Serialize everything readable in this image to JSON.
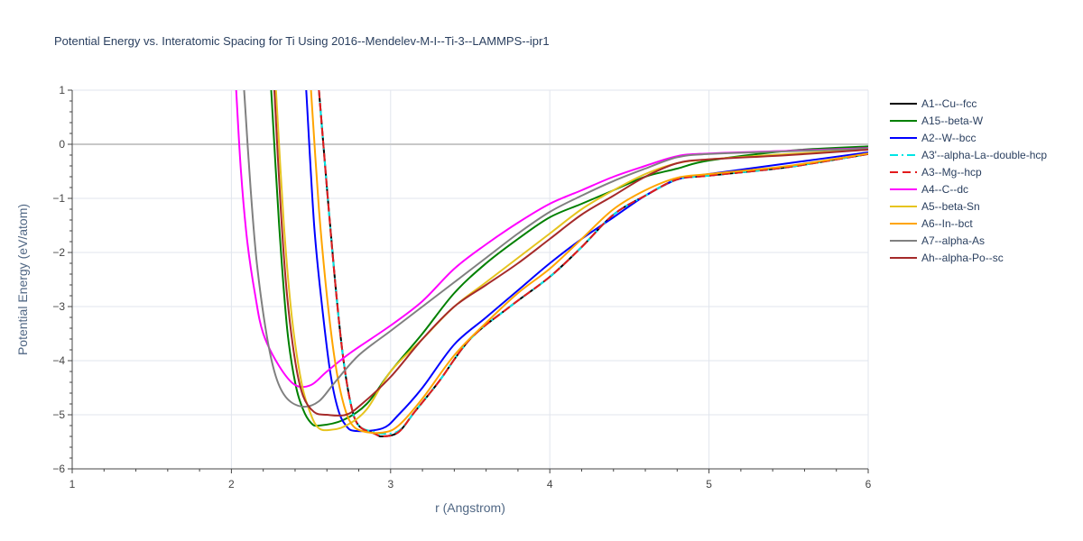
{
  "chart_data": {
    "type": "line",
    "title": "Potential Energy vs. Interatomic Spacing for Ti Using 2016--Mendelev-M-I--Ti-3--LAMMPS--ipr1",
    "xlabel": "r (Angstrom)",
    "ylabel": "Potential Energy (eV/atom)",
    "xlim": [
      1,
      6
    ],
    "ylim": [
      -6,
      1
    ],
    "x_ticks": [
      1,
      2,
      3,
      4,
      5,
      6
    ],
    "y_ticks": [
      -6,
      -5,
      -4,
      -3,
      -2,
      -1,
      0,
      1
    ],
    "x_tick_labels": [
      "1",
      "2",
      "3",
      "4",
      "5",
      "6"
    ],
    "y_tick_labels": [
      "−6",
      "−5",
      "−4",
      "−3",
      "−2",
      "−1",
      "0",
      "1"
    ],
    "grid": true,
    "legend_position": "right",
    "series": [
      {
        "name": "A1--Cu--fcc",
        "color": "#000000",
        "dash": "solid",
        "points": [
          [
            2.55,
            1
          ],
          [
            2.6,
            -0.8
          ],
          [
            2.65,
            -2.5
          ],
          [
            2.7,
            -3.9
          ],
          [
            2.75,
            -4.8
          ],
          [
            2.8,
            -5.2
          ],
          [
            2.9,
            -5.35
          ],
          [
            2.95,
            -5.4
          ],
          [
            3.05,
            -5.32
          ],
          [
            3.15,
            -4.95
          ],
          [
            3.3,
            -4.4
          ],
          [
            3.5,
            -3.6
          ],
          [
            3.75,
            -3.0
          ],
          [
            4.0,
            -2.45
          ],
          [
            4.2,
            -1.9
          ],
          [
            4.4,
            -1.3
          ],
          [
            4.6,
            -0.95
          ],
          [
            4.8,
            -0.65
          ],
          [
            5.0,
            -0.58
          ],
          [
            5.5,
            -0.42
          ],
          [
            6.0,
            -0.18
          ]
        ]
      },
      {
        "name": "A15--beta-W",
        "color": "#008000",
        "dash": "solid",
        "points": [
          [
            2.25,
            1
          ],
          [
            2.3,
            -1.5
          ],
          [
            2.35,
            -3.4
          ],
          [
            2.4,
            -4.4
          ],
          [
            2.45,
            -4.9
          ],
          [
            2.5,
            -5.15
          ],
          [
            2.55,
            -5.2
          ],
          [
            2.7,
            -5.1
          ],
          [
            2.85,
            -4.8
          ],
          [
            3.0,
            -4.2
          ],
          [
            3.2,
            -3.5
          ],
          [
            3.4,
            -2.75
          ],
          [
            3.6,
            -2.2
          ],
          [
            3.8,
            -1.75
          ],
          [
            4.0,
            -1.35
          ],
          [
            4.2,
            -1.1
          ],
          [
            4.4,
            -0.85
          ],
          [
            4.6,
            -0.6
          ],
          [
            4.8,
            -0.45
          ],
          [
            5.0,
            -0.3
          ],
          [
            5.5,
            -0.12
          ],
          [
            6.0,
            -0.04
          ]
        ]
      },
      {
        "name": "A2--W--bcc",
        "color": "#0000ff",
        "dash": "solid",
        "points": [
          [
            2.47,
            1
          ],
          [
            2.52,
            -1.5
          ],
          [
            2.57,
            -3.0
          ],
          [
            2.62,
            -4.2
          ],
          [
            2.67,
            -4.9
          ],
          [
            2.72,
            -5.2
          ],
          [
            2.78,
            -5.3
          ],
          [
            2.95,
            -5.25
          ],
          [
            3.05,
            -5.0
          ],
          [
            3.2,
            -4.5
          ],
          [
            3.4,
            -3.7
          ],
          [
            3.6,
            -3.2
          ],
          [
            3.8,
            -2.7
          ],
          [
            4.0,
            -2.2
          ],
          [
            4.2,
            -1.75
          ],
          [
            4.4,
            -1.35
          ],
          [
            4.6,
            -0.95
          ],
          [
            4.8,
            -0.65
          ],
          [
            5.0,
            -0.55
          ],
          [
            5.5,
            -0.35
          ],
          [
            6.0,
            -0.15
          ]
        ]
      },
      {
        "name": "A3'--alpha-La--double-hcp",
        "color": "#00e5e5",
        "dash": "dashdot",
        "points": [
          [
            2.55,
            1
          ],
          [
            2.6,
            -0.8
          ],
          [
            2.65,
            -2.5
          ],
          [
            2.7,
            -3.9
          ],
          [
            2.75,
            -4.8
          ],
          [
            2.8,
            -5.2
          ],
          [
            2.9,
            -5.32
          ],
          [
            2.95,
            -5.35
          ],
          [
            3.05,
            -5.3
          ],
          [
            3.15,
            -4.95
          ],
          [
            3.3,
            -4.4
          ],
          [
            3.5,
            -3.6
          ],
          [
            3.75,
            -3.0
          ],
          [
            4.0,
            -2.45
          ],
          [
            4.2,
            -1.9
          ],
          [
            4.4,
            -1.3
          ],
          [
            4.6,
            -0.95
          ],
          [
            4.8,
            -0.65
          ],
          [
            5.0,
            -0.58
          ],
          [
            5.5,
            -0.42
          ],
          [
            6.0,
            -0.18
          ]
        ]
      },
      {
        "name": "A3--Mg--hcp",
        "color": "#e31a1c",
        "dash": "dash",
        "points": [
          [
            2.55,
            1
          ],
          [
            2.6,
            -0.8
          ],
          [
            2.65,
            -2.5
          ],
          [
            2.7,
            -3.9
          ],
          [
            2.75,
            -4.8
          ],
          [
            2.8,
            -5.2
          ],
          [
            2.9,
            -5.35
          ],
          [
            2.95,
            -5.4
          ],
          [
            3.05,
            -5.32
          ],
          [
            3.15,
            -4.95
          ],
          [
            3.3,
            -4.4
          ],
          [
            3.5,
            -3.6
          ],
          [
            3.75,
            -3.0
          ],
          [
            4.0,
            -2.45
          ],
          [
            4.2,
            -1.9
          ],
          [
            4.4,
            -1.3
          ],
          [
            4.6,
            -0.95
          ],
          [
            4.8,
            -0.65
          ],
          [
            5.0,
            -0.58
          ],
          [
            5.5,
            -0.42
          ],
          [
            6.0,
            -0.18
          ]
        ]
      },
      {
        "name": "A4--C--dc",
        "color": "#ff00ff",
        "dash": "solid",
        "points": [
          [
            2.03,
            1
          ],
          [
            2.06,
            -0.5
          ],
          [
            2.1,
            -1.8
          ],
          [
            2.15,
            -2.8
          ],
          [
            2.2,
            -3.5
          ],
          [
            2.3,
            -4.1
          ],
          [
            2.4,
            -4.45
          ],
          [
            2.5,
            -4.45
          ],
          [
            2.6,
            -4.2
          ],
          [
            2.75,
            -3.85
          ],
          [
            3.0,
            -3.35
          ],
          [
            3.2,
            -2.9
          ],
          [
            3.4,
            -2.3
          ],
          [
            3.6,
            -1.85
          ],
          [
            3.8,
            -1.45
          ],
          [
            4.0,
            -1.1
          ],
          [
            4.2,
            -0.85
          ],
          [
            4.4,
            -0.6
          ],
          [
            4.6,
            -0.4
          ],
          [
            4.8,
            -0.22
          ],
          [
            5.0,
            -0.17
          ],
          [
            5.5,
            -0.12
          ],
          [
            6.0,
            -0.07
          ]
        ]
      },
      {
        "name": "A5--beta-Sn",
        "color": "#e6c41f",
        "dash": "solid",
        "points": [
          [
            2.28,
            1
          ],
          [
            2.33,
            -1.5
          ],
          [
            2.38,
            -3.2
          ],
          [
            2.44,
            -4.4
          ],
          [
            2.5,
            -5.0
          ],
          [
            2.55,
            -5.25
          ],
          [
            2.62,
            -5.28
          ],
          [
            2.72,
            -5.2
          ],
          [
            2.85,
            -4.9
          ],
          [
            3.0,
            -4.2
          ],
          [
            3.2,
            -3.6
          ],
          [
            3.4,
            -3.0
          ],
          [
            3.6,
            -2.55
          ],
          [
            3.8,
            -2.1
          ],
          [
            4.0,
            -1.65
          ],
          [
            4.2,
            -1.2
          ],
          [
            4.4,
            -0.85
          ],
          [
            4.6,
            -0.55
          ],
          [
            4.8,
            -0.35
          ],
          [
            5.0,
            -0.28
          ],
          [
            5.5,
            -0.18
          ],
          [
            6.0,
            -0.1
          ]
        ]
      },
      {
        "name": "A6--In--bct",
        "color": "#ffa500",
        "dash": "solid",
        "points": [
          [
            2.5,
            1
          ],
          [
            2.55,
            -1.2
          ],
          [
            2.6,
            -2.8
          ],
          [
            2.65,
            -4.0
          ],
          [
            2.7,
            -4.75
          ],
          [
            2.75,
            -5.15
          ],
          [
            2.82,
            -5.3
          ],
          [
            2.95,
            -5.33
          ],
          [
            3.05,
            -5.2
          ],
          [
            3.2,
            -4.7
          ],
          [
            3.4,
            -3.9
          ],
          [
            3.6,
            -3.3
          ],
          [
            3.8,
            -2.75
          ],
          [
            4.0,
            -2.3
          ],
          [
            4.2,
            -1.75
          ],
          [
            4.4,
            -1.2
          ],
          [
            4.6,
            -0.85
          ],
          [
            4.8,
            -0.62
          ],
          [
            5.0,
            -0.55
          ],
          [
            5.5,
            -0.4
          ],
          [
            6.0,
            -0.17
          ]
        ]
      },
      {
        "name": "A7--alpha-As",
        "color": "#808080",
        "dash": "solid",
        "points": [
          [
            2.08,
            1
          ],
          [
            2.12,
            -0.8
          ],
          [
            2.16,
            -2.2
          ],
          [
            2.22,
            -3.5
          ],
          [
            2.28,
            -4.3
          ],
          [
            2.35,
            -4.7
          ],
          [
            2.45,
            -4.85
          ],
          [
            2.55,
            -4.75
          ],
          [
            2.65,
            -4.4
          ],
          [
            2.8,
            -3.9
          ],
          [
            3.0,
            -3.45
          ],
          [
            3.2,
            -3.0
          ],
          [
            3.4,
            -2.55
          ],
          [
            3.6,
            -2.1
          ],
          [
            3.8,
            -1.65
          ],
          [
            4.0,
            -1.25
          ],
          [
            4.2,
            -0.95
          ],
          [
            4.4,
            -0.68
          ],
          [
            4.6,
            -0.45
          ],
          [
            4.8,
            -0.24
          ],
          [
            5.0,
            -0.18
          ],
          [
            5.5,
            -0.13
          ],
          [
            6.0,
            -0.08
          ]
        ]
      },
      {
        "name": "Ah--alpha-Po--sc",
        "color": "#a52a2a",
        "dash": "solid",
        "points": [
          [
            2.27,
            1
          ],
          [
            2.31,
            -1.2
          ],
          [
            2.35,
            -2.8
          ],
          [
            2.4,
            -4.0
          ],
          [
            2.45,
            -4.65
          ],
          [
            2.52,
            -4.95
          ],
          [
            2.6,
            -5.0
          ],
          [
            2.72,
            -5.0
          ],
          [
            2.82,
            -4.8
          ],
          [
            3.0,
            -4.3
          ],
          [
            3.2,
            -3.6
          ],
          [
            3.4,
            -3.0
          ],
          [
            3.6,
            -2.6
          ],
          [
            3.8,
            -2.2
          ],
          [
            4.0,
            -1.75
          ],
          [
            4.2,
            -1.3
          ],
          [
            4.4,
            -0.95
          ],
          [
            4.6,
            -0.6
          ],
          [
            4.8,
            -0.35
          ],
          [
            5.0,
            -0.28
          ],
          [
            5.5,
            -0.2
          ],
          [
            6.0,
            -0.1
          ]
        ]
      }
    ]
  }
}
